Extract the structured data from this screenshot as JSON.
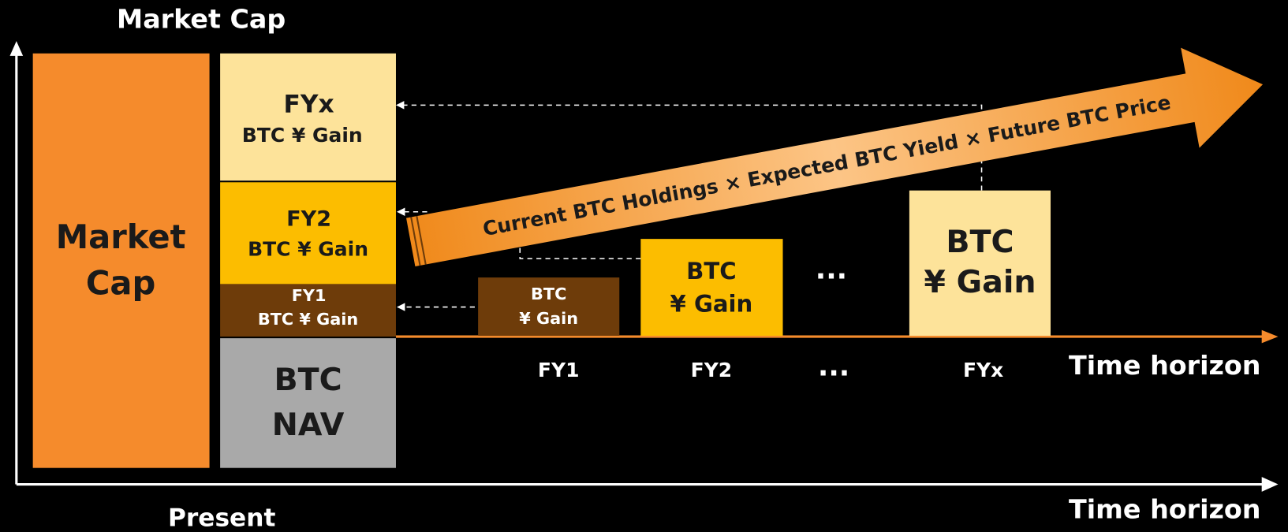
{
  "y_axis_label": "Market Cap",
  "present_label": "Present",
  "x_axis_label": "Time horizon",
  "market_cap_block": {
    "lines": [
      "Market",
      "Cap"
    ]
  },
  "stack": [
    {
      "lines": [
        "FYx",
        "BTC ¥ Gain"
      ]
    },
    {
      "lines": [
        "FY2",
        "BTC ¥ Gain"
      ]
    },
    {
      "lines": [
        "FY1",
        "BTC ¥ Gain"
      ]
    },
    {
      "lines": [
        "BTC",
        "NAV"
      ]
    }
  ],
  "formula": "Current BTC Holdings × Expected BTC Yield × Future BTC Price",
  "timeline": {
    "axis_label": "Time horizon",
    "blocks": [
      {
        "lines": [
          "BTC",
          "¥ Gain"
        ]
      },
      {
        "lines": [
          "BTC",
          "¥ Gain"
        ]
      },
      {
        "lines": [
          "BTC",
          "¥ Gain"
        ]
      }
    ],
    "ellipsis": "...",
    "periods": [
      "FY1",
      "FY2",
      "...",
      "FYx"
    ]
  }
}
